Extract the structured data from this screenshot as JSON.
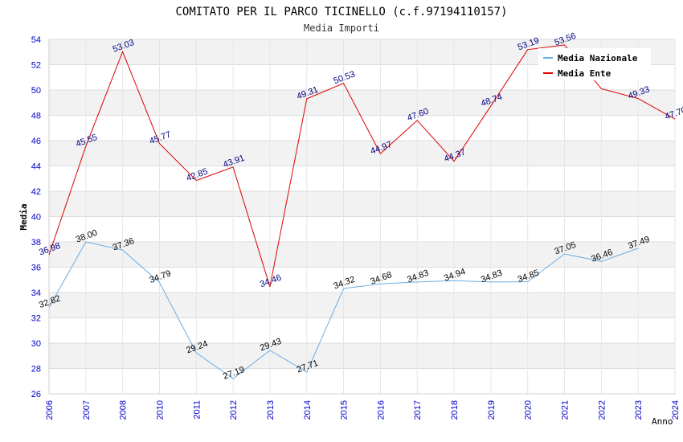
{
  "chart_data": {
    "type": "line",
    "title": "COMITATO PER IL PARCO TICINELLO (c.f.97194110157)",
    "subtitle": "Media Importi",
    "ylabel": "Media",
    "xlabel": "Anno",
    "ylim": [
      26,
      54
    ],
    "yticks": [
      "26",
      "28",
      "30",
      "32",
      "34",
      "36",
      "38",
      "40",
      "42",
      "44",
      "46",
      "48",
      "50",
      "52",
      "54"
    ],
    "categories": [
      "2006",
      "2007",
      "2008",
      "2010",
      "2011",
      "2012",
      "2013",
      "2014",
      "2015",
      "2016",
      "2017",
      "2018",
      "2019",
      "2020",
      "2021",
      "2022",
      "2023",
      "2024"
    ],
    "grid": true,
    "legend_position": "top-right",
    "series": [
      {
        "name": "Media Nazionale",
        "color": "#6aaee6",
        "values": [
          32.82,
          38.0,
          37.36,
          34.79,
          29.24,
          27.19,
          29.43,
          27.71,
          34.32,
          34.68,
          34.83,
          34.94,
          34.83,
          34.85,
          37.05,
          36.46,
          37.49,
          null
        ],
        "labels": [
          "32.82",
          "38.00",
          "37.36",
          "34.79",
          "29.24",
          "27.19",
          "29.43",
          "27.71",
          "34.32",
          "34.68",
          "34.83",
          "34.94",
          "34.83",
          "34.85",
          "37.05",
          "36.46",
          "37.49",
          ""
        ]
      },
      {
        "name": "Media Ente",
        "color": "#dd0000",
        "values": [
          36.98,
          45.55,
          53.03,
          45.77,
          42.85,
          43.91,
          34.46,
          49.31,
          50.53,
          44.97,
          47.6,
          44.37,
          48.74,
          53.19,
          53.56,
          50.1,
          49.33,
          47.7
        ],
        "labels": [
          "36.98",
          "45.55",
          "53.03",
          "45.77",
          "42.85",
          "43.91",
          "34.46",
          "49.31",
          "50.53",
          "44.97",
          "47.60",
          "44.37",
          "48.74",
          "53.19",
          "53.56",
          "",
          "49.33",
          "47.70"
        ]
      }
    ]
  }
}
